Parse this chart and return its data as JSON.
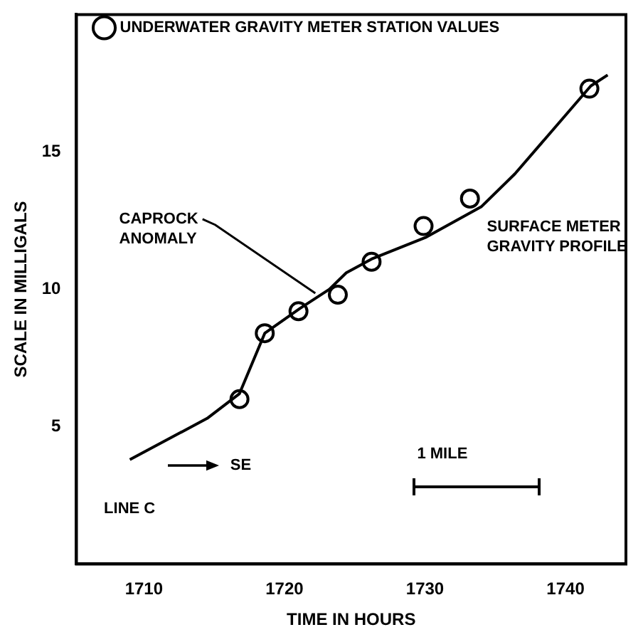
{
  "chart_data": {
    "type": "line",
    "xlabel": "TIME IN HOURS",
    "ylabel": "SCALE IN MILLIGALS",
    "xlim": [
      1705.2,
      1744.3
    ],
    "ylim": [
      0,
      20
    ],
    "xticks": [
      1710,
      1720,
      1730,
      1740
    ],
    "yticks": [
      5,
      10,
      15
    ],
    "grid": false,
    "legend": "top left",
    "series": [
      {
        "name": "SURFACE METER GRAVITY PROFILE",
        "type": "line",
        "color": "#000000",
        "marker": "none",
        "line_style": "solid",
        "x": [
          1709.0,
          1714.5,
          1716.8,
          1718.6,
          1721.1,
          1723.2,
          1724.4,
          1726.2,
          1730.1,
          1734.0,
          1736.4,
          1741.8,
          1743.0
        ],
        "values": [
          3.8,
          5.3,
          6.2,
          8.4,
          9.3,
          10.0,
          10.6,
          11.1,
          11.9,
          13.0,
          14.2,
          17.4,
          17.8
        ]
      },
      {
        "name": "UNDERWATER GRAVITY METER STATION VALUES",
        "type": "scatter",
        "color": "#000000",
        "marker": "circle",
        "x": [
          1716.8,
          1718.6,
          1721.0,
          1723.8,
          1726.2,
          1729.9,
          1733.2,
          1741.7
        ],
        "values": [
          6.0,
          8.4,
          9.2,
          9.8,
          11.0,
          12.3,
          13.3,
          17.3
        ]
      }
    ],
    "annotations": [
      {
        "text": "CAPROCK ANOMALY",
        "x": 1722.4,
        "y": 9.7
      },
      "LINE C",
      "SE",
      "1 MILE"
    ]
  }
}
